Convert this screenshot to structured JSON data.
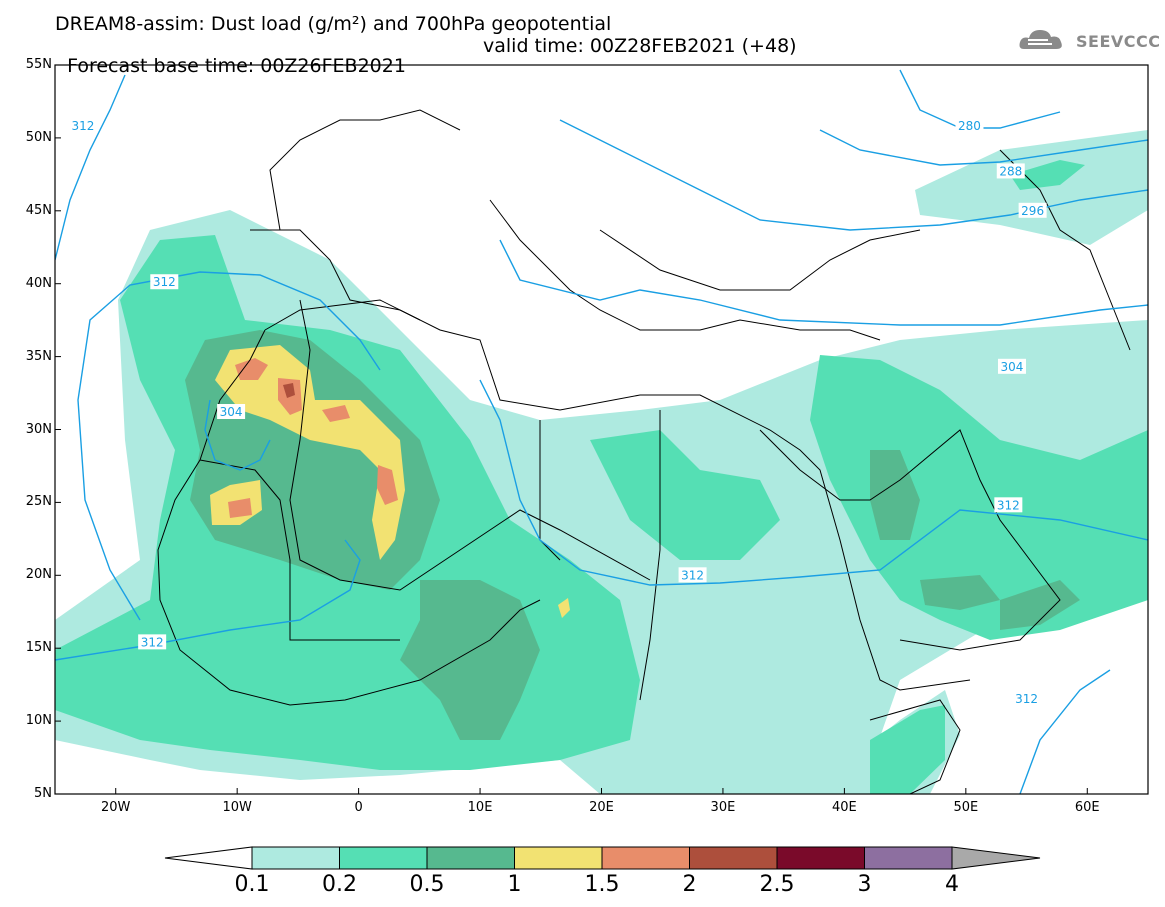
{
  "title": {
    "line1": "DREAM8-assim: Dust load (g/m²) and 700hPa geopotential",
    "line2_base": "Forecast base time: 00Z26FEB2021",
    "line2_valid": "valid time: 00Z28FEB2021 (+48)"
  },
  "logo": {
    "text": "SEEVCCC",
    "icon": "cloud-logo-icon"
  },
  "map": {
    "lat_labels": [
      "55N",
      "50N",
      "45N",
      "40N",
      "35N",
      "30N",
      "25N",
      "20N",
      "15N",
      "10N",
      "5N"
    ],
    "lon_labels": [
      "20W",
      "10W",
      "0",
      "10E",
      "20E",
      "30E",
      "40E",
      "50E",
      "60E"
    ],
    "lat_range": [
      5,
      55
    ],
    "lon_range": [
      -25,
      65
    ],
    "contour_labels": [
      {
        "text": "312",
        "lon": -22.7,
        "lat": 50.8
      },
      {
        "text": "312",
        "lon": -16.0,
        "lat": 40.1
      },
      {
        "text": "304",
        "lon": -10.5,
        "lat": 31.2
      },
      {
        "text": "312",
        "lon": -17.0,
        "lat": 15.4
      },
      {
        "text": "312",
        "lon": 27.5,
        "lat": 20.0
      },
      {
        "text": "312",
        "lon": 55.0,
        "lat": 11.5
      },
      {
        "text": "312",
        "lon": 53.5,
        "lat": 24.8
      },
      {
        "text": "304",
        "lon": 53.8,
        "lat": 34.3
      },
      {
        "text": "296",
        "lon": 55.5,
        "lat": 45.0
      },
      {
        "text": "288",
        "lon": 53.7,
        "lat": 47.7
      },
      {
        "text": "280",
        "lon": 50.3,
        "lat": 50.8
      }
    ]
  },
  "colorbar": {
    "labels": [
      "0.1",
      "0.2",
      "0.5",
      "1",
      "1.5",
      "2",
      "2.5",
      "3",
      "4"
    ],
    "colors": [
      "#aeeae0",
      "#55dfb4",
      "#56b98f",
      "#f2e272",
      "#e88d6a",
      "#ad4f3c",
      "#7a0a2a",
      "#8d6fa0"
    ],
    "upper_color": "#a9a9a9",
    "lower_color": "#ffffff"
  }
}
